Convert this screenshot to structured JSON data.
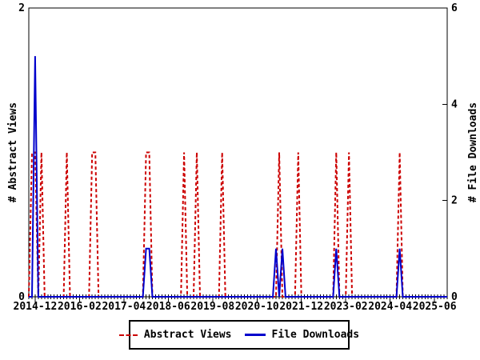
{
  "chart_data": {
    "type": "line",
    "title": "",
    "x_axis": {
      "start_month": "2014-10",
      "end_month": "2025-10",
      "tick_labels": [
        "2014-12",
        "2016-02",
        "2017-04",
        "2018-06",
        "2019-08",
        "2020-10",
        "2021-12",
        "2023-02",
        "2024-04",
        "2025-06"
      ],
      "tick_interval_months": 14,
      "minor_tick_every_months": 1
    },
    "left_axis": {
      "label": "# Abstract Views",
      "min": 0,
      "max": 2,
      "ticks": [
        0,
        2
      ]
    },
    "right_axis": {
      "label": "# File Downloads",
      "min": 0,
      "max": 6,
      "ticks": [
        0,
        2,
        4,
        6
      ]
    },
    "baseline_value": 0,
    "grid": false,
    "legend_position": "bottom-center",
    "series": [
      {
        "name": "Abstract Views",
        "axis": "left",
        "color": "#cc0000",
        "style": "dashed",
        "spikes": [
          {
            "month": "2014-11",
            "value": 1
          },
          {
            "month": "2014-12",
            "value": 1
          },
          {
            "month": "2015-02",
            "value": 1
          },
          {
            "month": "2015-10",
            "value": 1
          },
          {
            "month": "2016-06",
            "value": 1
          },
          {
            "month": "2016-07",
            "value": 1
          },
          {
            "month": "2017-11",
            "value": 1
          },
          {
            "month": "2017-12",
            "value": 1
          },
          {
            "month": "2018-11",
            "value": 1
          },
          {
            "month": "2019-03",
            "value": 1
          },
          {
            "month": "2019-11",
            "value": 1
          },
          {
            "month": "2021-05",
            "value": 1
          },
          {
            "month": "2021-11",
            "value": 1
          },
          {
            "month": "2022-11",
            "value": 1
          },
          {
            "month": "2023-03",
            "value": 1
          },
          {
            "month": "2024-07",
            "value": 1
          }
        ]
      },
      {
        "name": "File Downloads",
        "axis": "right",
        "color": "#0000cc",
        "style": "solid",
        "spikes": [
          {
            "month": "2014-12",
            "value": 5
          },
          {
            "month": "2017-11",
            "value": 1
          },
          {
            "month": "2017-12",
            "value": 1
          },
          {
            "month": "2021-04",
            "value": 1
          },
          {
            "month": "2021-06",
            "value": 1
          },
          {
            "month": "2022-11",
            "value": 1
          },
          {
            "month": "2024-07",
            "value": 1
          }
        ]
      }
    ]
  },
  "legend": {
    "items": [
      {
        "label": "Abstract Views"
      },
      {
        "label": "File Downloads"
      }
    ]
  }
}
